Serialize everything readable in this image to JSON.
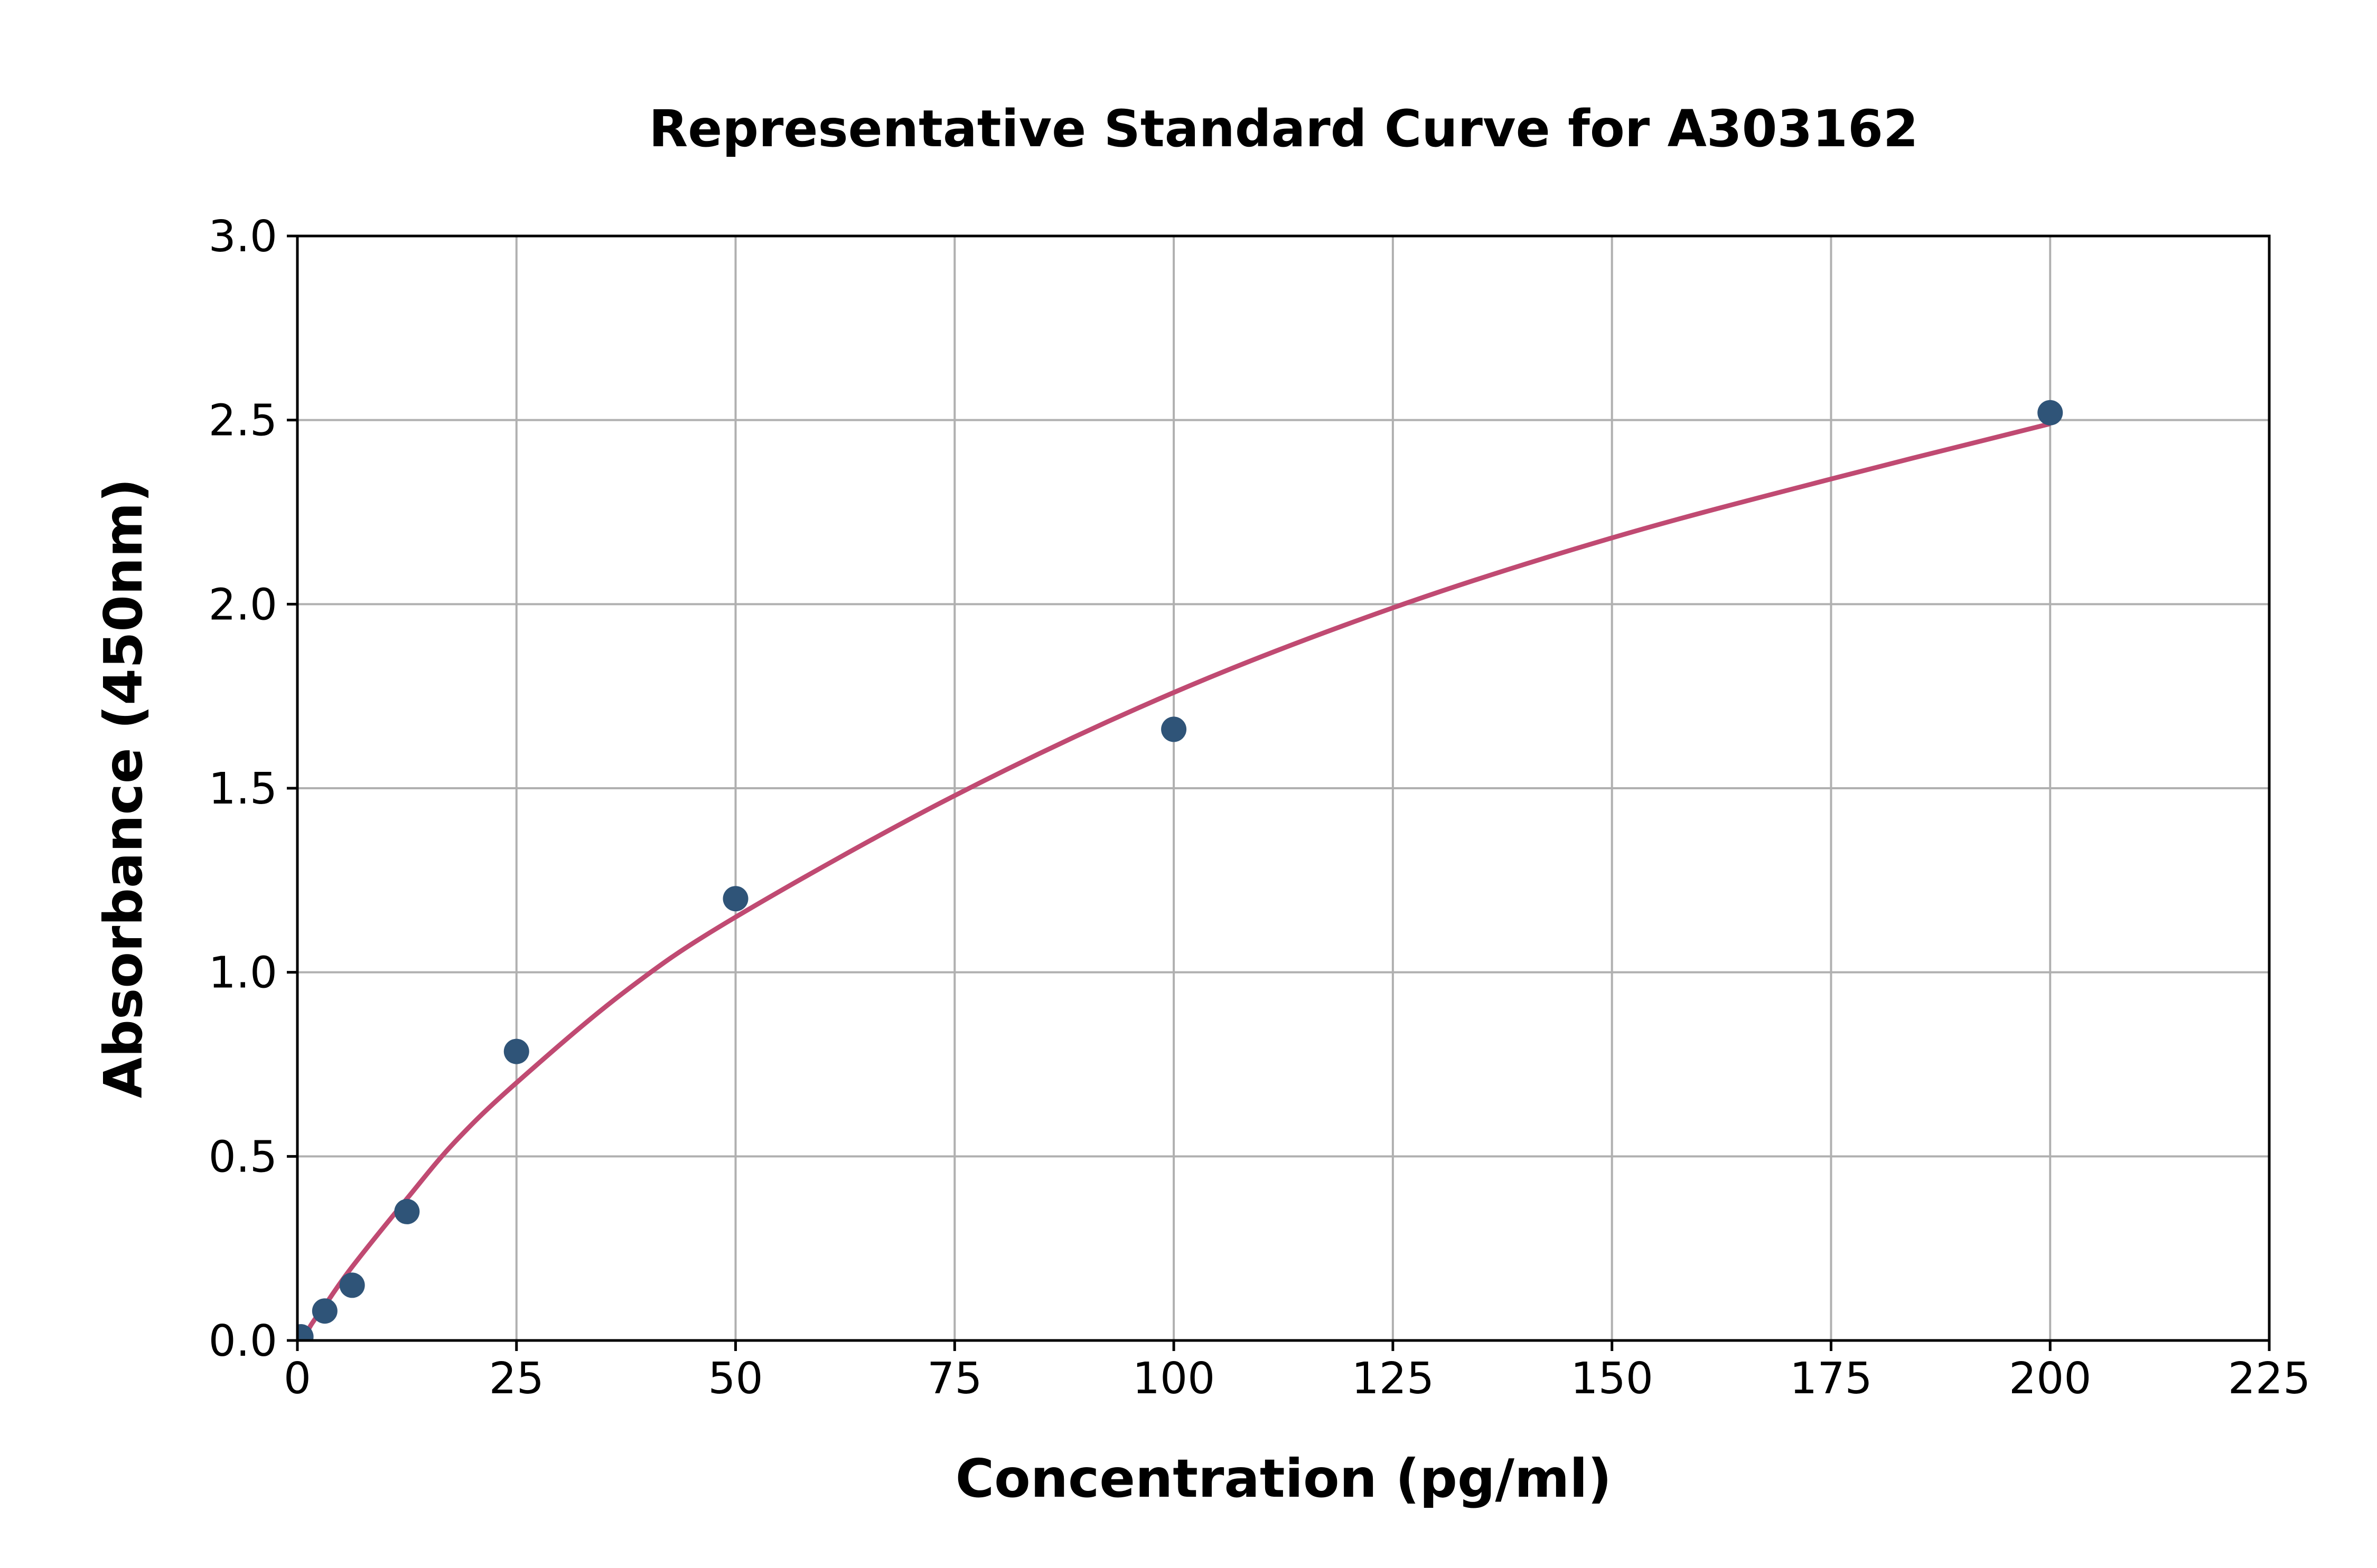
{
  "chart_data": {
    "type": "scatter",
    "title": "Representative Standard Curve for A303162",
    "xlabel": "Concentration (pg/ml)",
    "ylabel": "Absorbance (450nm)",
    "xlim": [
      0,
      225
    ],
    "ylim": [
      0,
      3.0
    ],
    "xticks": [
      "0",
      "25",
      "50",
      "75",
      "100",
      "125",
      "150",
      "175",
      "200",
      "225"
    ],
    "yticks": [
      "0.0",
      "0.5",
      "1.0",
      "1.5",
      "2.0",
      "2.5",
      "3.0"
    ],
    "grid": true,
    "points": {
      "x": [
        0.4,
        3.125,
        6.25,
        12.5,
        25,
        50,
        100,
        200
      ],
      "y": [
        0.01,
        0.08,
        0.15,
        0.35,
        0.785,
        1.2,
        1.66,
        2.52
      ],
      "color": "#2f5478"
    },
    "fit_curve": {
      "x": [
        0.7,
        1.5,
        3.125,
        6.25,
        12.5,
        18,
        25,
        37.5,
        50,
        75,
        100,
        125,
        150,
        175,
        200
      ],
      "y": [
        0.0,
        0.04,
        0.095,
        0.2,
        0.385,
        0.54,
        0.7,
        0.95,
        1.15,
        1.48,
        1.76,
        1.99,
        2.18,
        2.34,
        2.49
      ],
      "color": "#c04a72"
    }
  }
}
